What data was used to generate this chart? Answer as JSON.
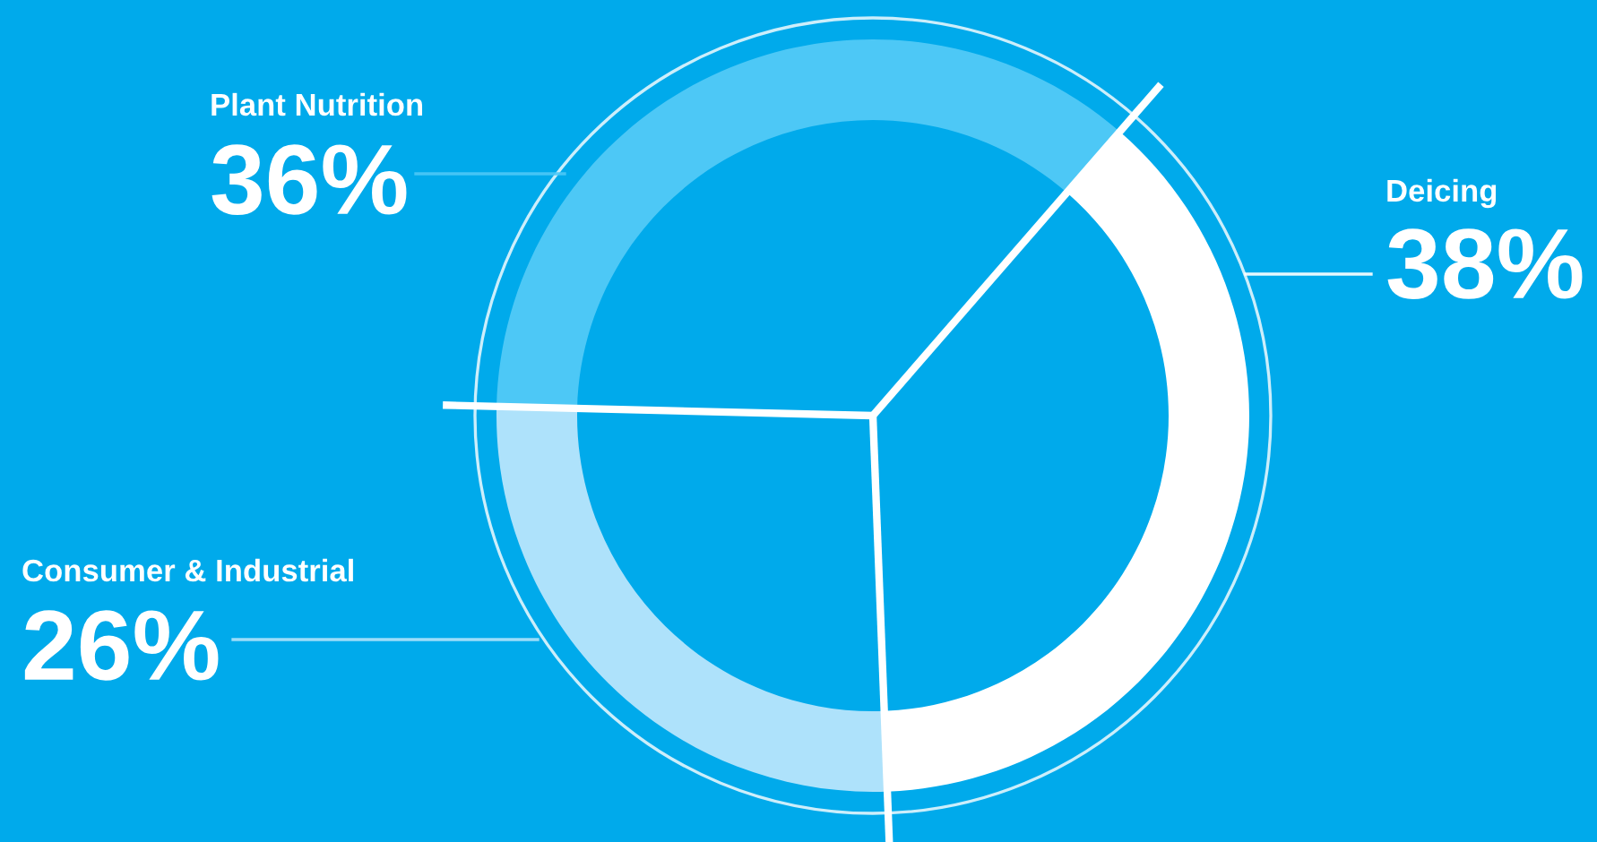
{
  "chart_data": {
    "type": "donut",
    "categories": [
      "Deicing",
      "Consumer & Industrial",
      "Plant Nutrition"
    ],
    "values": [
      38,
      26,
      36
    ],
    "colors": [
      "#ffffff",
      "#aee2fb",
      "#4dc8f6"
    ],
    "value_labels": [
      "38%",
      "26%",
      "36%"
    ]
  }
}
